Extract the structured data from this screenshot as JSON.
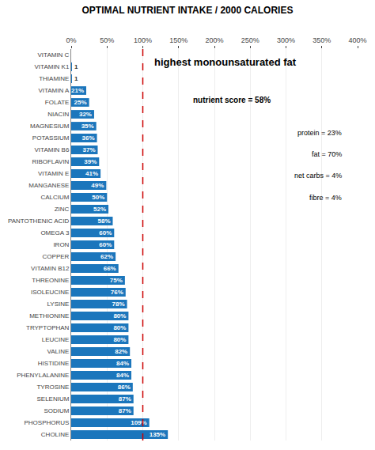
{
  "chart_data": {
    "type": "bar",
    "orientation": "horizontal",
    "title": "OPTIMAL NUTRIENT INTAKE / 2000 CALORIES",
    "categories": [
      "CHOLINE",
      "PHOSPHORUS",
      "SODIUM",
      "SELENIUM",
      "TYROSINE",
      "PHENYLALANINE",
      "HISTIDINE",
      "VALINE",
      "LEUCINE",
      "TRYPTOPHAN",
      "METHIONINE",
      "LYSINE",
      "ISOLEUCINE",
      "THREONINE",
      "VITAMIN B12",
      "COPPER",
      "IRON",
      "OMEGA 3",
      "PANTOTHENIC ACID",
      "ZINC",
      "CALCIUM",
      "MANGANESE",
      "VITAMIN E",
      "RIBOFLAVIN",
      "VITAMIN B6",
      "POTASSIUM",
      "MAGNESIUM",
      "NIACIN",
      "FOLATE",
      "VITAMIN A",
      "THIAMINE",
      "VITAMIN K1",
      "VITAMIN C"
    ],
    "values": [
      135,
      109,
      87,
      87,
      86,
      84,
      84,
      82,
      80,
      80,
      80,
      78,
      76,
      75,
      66,
      62,
      60,
      60,
      58,
      52,
      50,
      49,
      41,
      39,
      37,
      36,
      35,
      32,
      25,
      21,
      1,
      1,
      0
    ],
    "value_labels": [
      "135%",
      "109%",
      "87%",
      "87%",
      "86%",
      "84%",
      "84%",
      "82%",
      "80%",
      "80%",
      "80%",
      "78%",
      "76%",
      "75%",
      "66%",
      "62%",
      "60%",
      "60%",
      "58%",
      "52%",
      "50%",
      "49%",
      "41%",
      "39%",
      "37%",
      "36%",
      "35%",
      "32%",
      "25%",
      "21%",
      "1",
      "1",
      null
    ],
    "data_labels": true,
    "color": "#1B76BC",
    "xlim": [
      0,
      400
    ],
    "xticks": [
      {
        "value": 0,
        "label": "0%"
      },
      {
        "value": 50,
        "label": "50%"
      },
      {
        "value": 100,
        "label": "100%"
      },
      {
        "value": 150,
        "label": "150%"
      },
      {
        "value": 200,
        "label": "200%"
      },
      {
        "value": 250,
        "label": "250%"
      },
      {
        "value": 300,
        "label": "300%"
      },
      {
        "value": 350,
        "label": "350%"
      },
      {
        "value": 400,
        "label": "400%"
      }
    ],
    "grid": true,
    "reference_lines": [
      {
        "x": 100,
        "color": "#CC0000",
        "line_style": "dashed"
      }
    ],
    "annotations": [
      "highest monounsaturated fat",
      "nutrient score = 58%",
      "protein = 23%",
      "fat = 70%",
      "net carbs = 4%",
      "fibre = 4%"
    ]
  }
}
